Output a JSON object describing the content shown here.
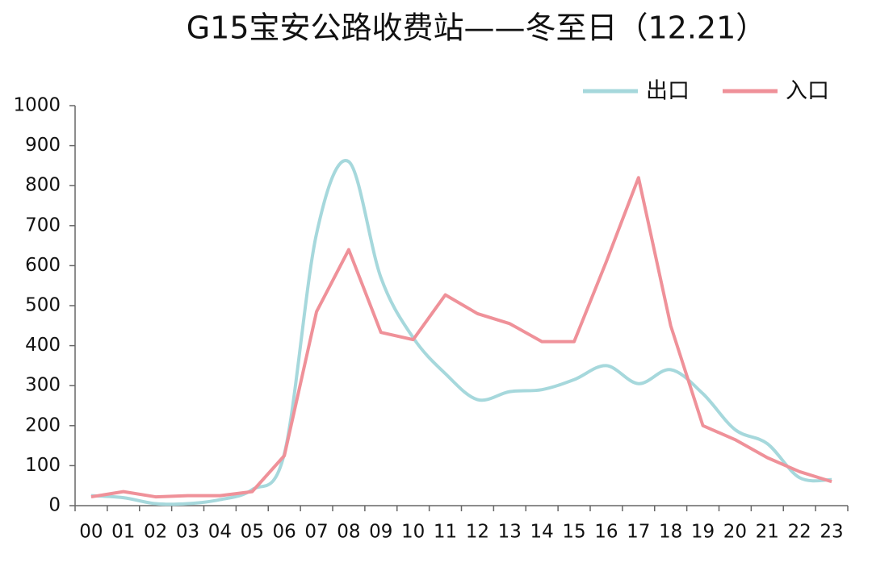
{
  "chart_data": {
    "type": "line",
    "title": "G15宝安公路收费站——冬至日（12.21）",
    "categories": [
      "00",
      "01",
      "02",
      "03",
      "04",
      "05",
      "06",
      "07",
      "08",
      "09",
      "10",
      "11",
      "12",
      "13",
      "14",
      "15",
      "16",
      "17",
      "18",
      "19",
      "20",
      "21",
      "22",
      "23"
    ],
    "series": [
      {
        "name": "出口",
        "color": "#a6d8dc",
        "smooth": true,
        "values": [
          25,
          20,
          5,
          5,
          15,
          40,
          130,
          680,
          860,
          570,
          420,
          330,
          265,
          285,
          290,
          315,
          350,
          305,
          340,
          280,
          190,
          155,
          70,
          65
        ]
      },
      {
        "name": "入口",
        "color": "#ef9199",
        "smooth": false,
        "values": [
          22,
          35,
          22,
          25,
          25,
          35,
          125,
          485,
          640,
          433,
          415,
          527,
          480,
          455,
          410,
          410,
          610,
          820,
          450,
          200,
          165,
          120,
          85,
          60
        ]
      }
    ],
    "ylim": [
      0,
      1000
    ],
    "yticks": [
      0,
      100,
      200,
      300,
      400,
      500,
      600,
      700,
      800,
      900,
      1000
    ],
    "grid": false,
    "legend": "top-right"
  }
}
